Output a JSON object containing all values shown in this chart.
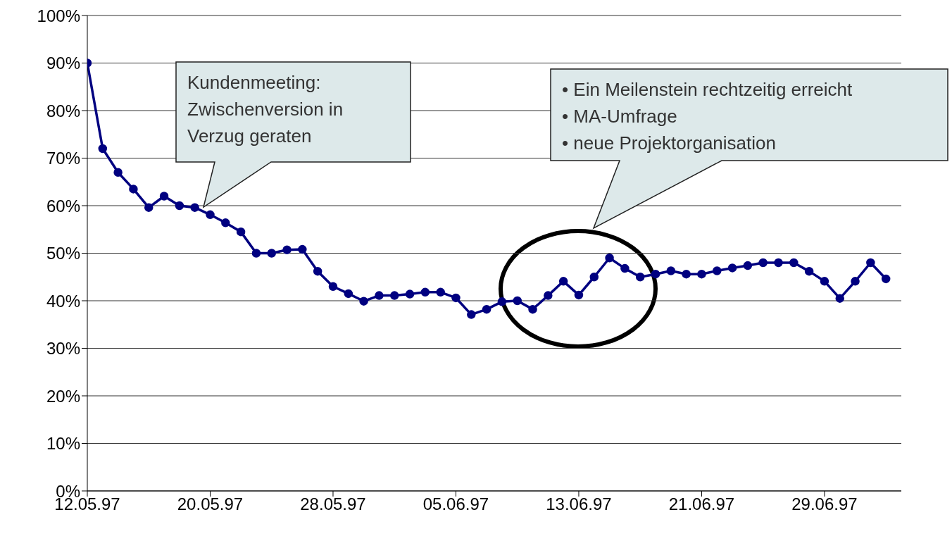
{
  "chart_data": {
    "type": "line",
    "x": [
      "1997-05-12",
      "1997-05-13",
      "1997-05-14",
      "1997-05-15",
      "1997-05-16",
      "1997-05-17",
      "1997-05-18",
      "1997-05-19",
      "1997-05-20",
      "1997-05-21",
      "1997-05-22",
      "1997-05-23",
      "1997-05-24",
      "1997-05-25",
      "1997-05-26",
      "1997-05-27",
      "1997-05-28",
      "1997-05-29",
      "1997-05-30",
      "1997-05-31",
      "1997-06-01",
      "1997-06-02",
      "1997-06-03",
      "1997-06-04",
      "1997-06-05",
      "1997-06-06",
      "1997-06-07",
      "1997-06-08",
      "1997-06-09",
      "1997-06-10",
      "1997-06-11",
      "1997-06-12",
      "1997-06-13",
      "1997-06-14",
      "1997-06-15",
      "1997-06-16",
      "1997-06-17",
      "1997-06-18",
      "1997-06-19",
      "1997-06-20",
      "1997-06-21",
      "1997-06-22",
      "1997-06-23",
      "1997-06-24",
      "1997-06-25",
      "1997-06-26",
      "1997-06-27",
      "1997-06-28",
      "1997-06-29",
      "1997-06-30",
      "1997-07-01",
      "1997-07-02",
      "1997-07-03"
    ],
    "series": [
      {
        "color": "#000080",
        "values": [
          90,
          72,
          67,
          63.5,
          59.6,
          62,
          60,
          59.6,
          58.1,
          56.4,
          54.5,
          50,
          50,
          50.7,
          50.8,
          46.2,
          43,
          41.5,
          39.9,
          41.1,
          41.1,
          41.4,
          41.8,
          41.8,
          40.6,
          37.1,
          38.2,
          39.8,
          40,
          38.2,
          41.1,
          44.1,
          41.2,
          45,
          49,
          46.8,
          45,
          45.6,
          46.3,
          45.6,
          45.6,
          46.3,
          46.9,
          47.4,
          48,
          48,
          48,
          46.2,
          44.1,
          40.5,
          44.1,
          48,
          44.6
        ]
      }
    ],
    "xlim": [
      "1997-05-12",
      "1997-07-04"
    ],
    "xticks": [
      {
        "value": "1997-05-12",
        "label": "12.05.97"
      },
      {
        "value": "1997-05-20",
        "label": "20.05.97"
      },
      {
        "value": "1997-05-28",
        "label": "28.05.97"
      },
      {
        "value": "1997-06-05",
        "label": "05.06.97"
      },
      {
        "value": "1997-06-13",
        "label": "13.06.97"
      },
      {
        "value": "1997-06-21",
        "label": "21.06.97"
      },
      {
        "value": "1997-06-29",
        "label": "29.06.97"
      }
    ],
    "ylim": [
      0,
      100
    ],
    "yticks": [
      {
        "value": 0,
        "label": "0%"
      },
      {
        "value": 10,
        "label": "10%"
      },
      {
        "value": 20,
        "label": "20%"
      },
      {
        "value": 30,
        "label": "30%"
      },
      {
        "value": 40,
        "label": "40%"
      },
      {
        "value": 50,
        "label": "50%"
      },
      {
        "value": 60,
        "label": "60%"
      },
      {
        "value": 70,
        "label": "70%"
      },
      {
        "value": 80,
        "label": "80%"
      },
      {
        "value": 90,
        "label": "90%"
      },
      {
        "value": 100,
        "label": "100%"
      }
    ],
    "grid": "y",
    "marker": "circle",
    "line_style": "solid",
    "legend": false,
    "annotations": [
      "Kundenmeeting:\nZwischenversion in\nVerzug geraten",
      "• Ein Meilenstein rechtzeitig erreicht\n• MA-Umfrage\n• neue Projektorganisation"
    ]
  }
}
